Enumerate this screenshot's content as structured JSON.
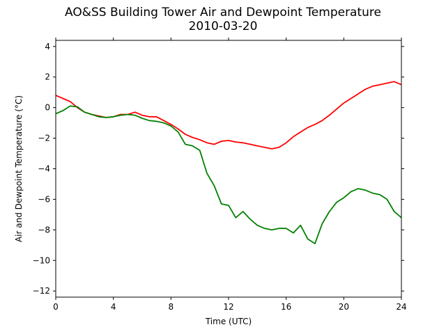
{
  "chart_data": {
    "type": "line",
    "title": "AO&SS Building Tower Air and Dewpoint Temperature",
    "subtitle": "2010-03-20",
    "xlabel": "Time (UTC)",
    "ylabel": "Air and Dewpoint Temperature (°C)",
    "xlim": [
      0,
      24
    ],
    "ylim": [
      -12.4,
      4.4
    ],
    "xticks": [
      0,
      4,
      8,
      12,
      16,
      20,
      24
    ],
    "yticks": [
      -12,
      -10,
      -8,
      -6,
      -4,
      -2,
      0,
      2,
      4
    ],
    "grid": false,
    "x": [
      0,
      0.5,
      1,
      1.5,
      2,
      2.5,
      3,
      3.5,
      4,
      4.5,
      5,
      5.5,
      6,
      6.5,
      7,
      7.5,
      8,
      8.5,
      9,
      9.5,
      10,
      10.5,
      11,
      11.5,
      12,
      12.5,
      13,
      13.5,
      14,
      14.5,
      15,
      15.5,
      16,
      16.5,
      17,
      17.5,
      18,
      18.5,
      19,
      19.5,
      20,
      20.5,
      21,
      21.5,
      22,
      22.5,
      23,
      23.5,
      24
    ],
    "series": [
      {
        "color": "#ff0000",
        "values": [
          0.8,
          0.6,
          0.4,
          0.0,
          -0.3,
          -0.45,
          -0.55,
          -0.65,
          -0.6,
          -0.45,
          -0.45,
          -0.3,
          -0.5,
          -0.6,
          -0.6,
          -0.85,
          -1.1,
          -1.4,
          -1.75,
          -1.95,
          -2.1,
          -2.3,
          -2.4,
          -2.2,
          -2.15,
          -2.25,
          -2.3,
          -2.4,
          -2.5,
          -2.6,
          -2.7,
          -2.6,
          -2.3,
          -1.9,
          -1.6,
          -1.3,
          -1.1,
          -0.85,
          -0.5,
          -0.1,
          0.3,
          0.6,
          0.9,
          1.2,
          1.4,
          1.5,
          1.6,
          1.7,
          1.5
        ]
      },
      {
        "color": "#008000",
        "values": [
          -0.4,
          -0.2,
          0.1,
          0.05,
          -0.3,
          -0.45,
          -0.6,
          -0.65,
          -0.6,
          -0.5,
          -0.45,
          -0.5,
          -0.7,
          -0.85,
          -0.9,
          -1.0,
          -1.2,
          -1.6,
          -2.4,
          -2.5,
          -2.8,
          -4.3,
          -5.1,
          -6.3,
          -6.4,
          -7.2,
          -6.8,
          -7.3,
          -7.7,
          -7.9,
          -8.0,
          -7.9,
          -7.9,
          -8.2,
          -7.7,
          -8.6,
          -8.9,
          -7.6,
          -6.8,
          -6.2,
          -5.9,
          -5.5,
          -5.3,
          -5.4,
          -5.6,
          -5.7,
          -6.0,
          -6.8,
          -7.2
        ]
      }
    ]
  }
}
